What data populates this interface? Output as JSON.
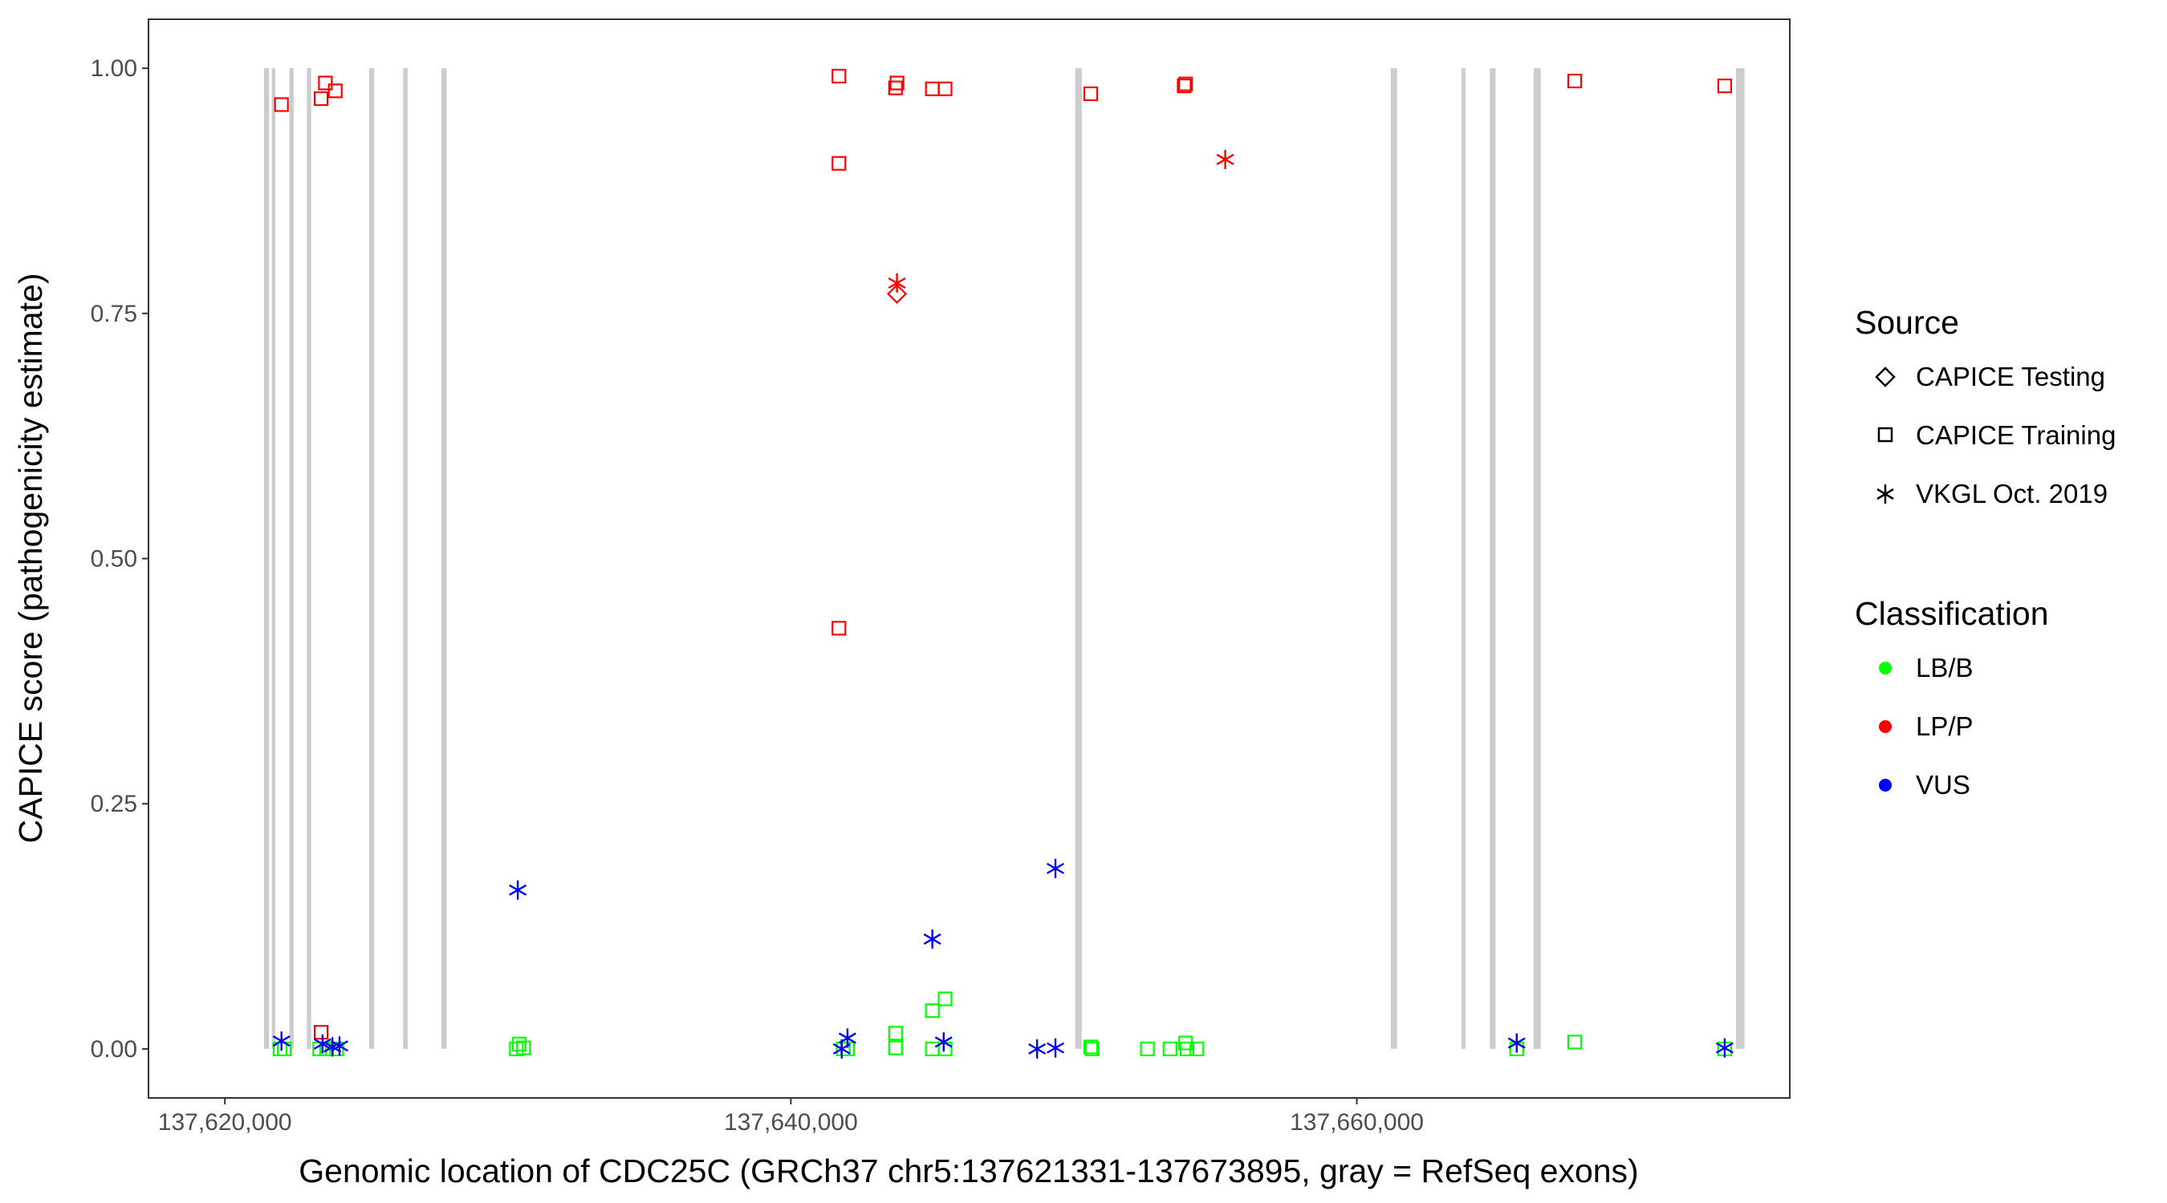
{
  "chart_data": {
    "type": "scatter",
    "xlabel": "Genomic location of CDC25C (GRCh37 chr5:137621331-137673895, gray = RefSeq exons)",
    "ylabel": "CAPICE score (pathogenicity estimate)",
    "xlim": [
      137617300,
      137675300
    ],
    "ylim": [
      -0.05,
      1.05
    ],
    "x_ticks": [
      137620000,
      137640000,
      137660000
    ],
    "x_tick_labels": [
      "137,620,000",
      "137,640,000",
      "137,660,000"
    ],
    "y_ticks": [
      0,
      0.25,
      0.5,
      0.75,
      1.0
    ],
    "y_tick_labels": [
      "0.00",
      "0.25",
      "0.50",
      "0.75",
      "1.00"
    ],
    "grid": false,
    "legend_placement": "right",
    "exon_color": "#cccccc",
    "exons": [
      [
        137621380,
        137621560
      ],
      [
        137621660,
        137621780
      ],
      [
        137622280,
        137622430
      ],
      [
        137622900,
        137623050
      ],
      [
        137625100,
        137625280
      ],
      [
        137626300,
        137626460
      ],
      [
        137627650,
        137627840
      ],
      [
        137650050,
        137650280
      ],
      [
        137661200,
        137661420
      ],
      [
        137663700,
        137663840
      ],
      [
        137664700,
        137664900
      ],
      [
        137666250,
        137666500
      ],
      [
        137673400,
        137673700
      ]
    ],
    "legend": {
      "source_title": "Source",
      "classification_title": "Classification",
      "sources": [
        {
          "label": "CAPICE Testing",
          "shape": "diamond"
        },
        {
          "label": "CAPICE Training",
          "shape": "square"
        },
        {
          "label": "VKGL Oct. 2019",
          "shape": "asterisk"
        }
      ],
      "classes": [
        {
          "label": "LB/B",
          "color": "#00ff00"
        },
        {
          "label": "LP/P",
          "color": "#ff0000"
        },
        {
          "label": "VUS",
          "color": "#0000ff"
        }
      ]
    },
    "points": [
      {
        "x": 137622000,
        "y": 0.963,
        "source": "square",
        "class": "LP/P"
      },
      {
        "x": 137623400,
        "y": 0.969,
        "source": "square",
        "class": "LP/P"
      },
      {
        "x": 137623550,
        "y": 0.985,
        "source": "square",
        "class": "LP/P"
      },
      {
        "x": 137623900,
        "y": 0.977,
        "source": "square",
        "class": "LP/P"
      },
      {
        "x": 137641700,
        "y": 0.992,
        "source": "square",
        "class": "LP/P"
      },
      {
        "x": 137643700,
        "y": 0.98,
        "source": "square",
        "class": "LP/P"
      },
      {
        "x": 137643750,
        "y": 0.985,
        "source": "square",
        "class": "LP/P"
      },
      {
        "x": 137645000,
        "y": 0.979,
        "source": "square",
        "class": "LP/P"
      },
      {
        "x": 137645450,
        "y": 0.979,
        "source": "square",
        "class": "LP/P"
      },
      {
        "x": 137641700,
        "y": 0.903,
        "source": "square",
        "class": "LP/P"
      },
      {
        "x": 137641700,
        "y": 0.429,
        "source": "square",
        "class": "LP/P"
      },
      {
        "x": 137650600,
        "y": 0.974,
        "source": "square",
        "class": "LP/P"
      },
      {
        "x": 137653900,
        "y": 0.982,
        "source": "square",
        "class": "LP/P"
      },
      {
        "x": 137653950,
        "y": 0.984,
        "source": "square",
        "class": "LP/P"
      },
      {
        "x": 137667700,
        "y": 0.987,
        "source": "square",
        "class": "LP/P"
      },
      {
        "x": 137673000,
        "y": 0.982,
        "source": "square",
        "class": "LP/P"
      },
      {
        "x": 137623400,
        "y": 0.017,
        "source": "square",
        "class": "LP/P"
      },
      {
        "x": 137643750,
        "y": 0.77,
        "source": "diamond",
        "class": "LP/P"
      },
      {
        "x": 137643750,
        "y": 0.781,
        "source": "asterisk",
        "class": "LP/P"
      },
      {
        "x": 137655350,
        "y": 0.907,
        "source": "asterisk",
        "class": "LP/P"
      },
      {
        "x": 137621950,
        "y": 0.0,
        "source": "square",
        "class": "LB/B"
      },
      {
        "x": 137622100,
        "y": 0.0,
        "source": "square",
        "class": "LB/B"
      },
      {
        "x": 137623350,
        "y": 0.0,
        "source": "square",
        "class": "LB/B"
      },
      {
        "x": 137623600,
        "y": 0.0,
        "source": "square",
        "class": "LB/B"
      },
      {
        "x": 137623950,
        "y": 0.0,
        "source": "square",
        "class": "LB/B"
      },
      {
        "x": 137630300,
        "y": 0.0,
        "source": "square",
        "class": "LB/B"
      },
      {
        "x": 137630400,
        "y": 0.005,
        "source": "square",
        "class": "LB/B"
      },
      {
        "x": 137630550,
        "y": 0.001,
        "source": "square",
        "class": "LB/B"
      },
      {
        "x": 137641850,
        "y": 0.0,
        "source": "square",
        "class": "LB/B"
      },
      {
        "x": 137642000,
        "y": 0.0,
        "source": "square",
        "class": "LB/B"
      },
      {
        "x": 137643700,
        "y": 0.016,
        "source": "square",
        "class": "LB/B"
      },
      {
        "x": 137643700,
        "y": 0.001,
        "source": "square",
        "class": "LB/B"
      },
      {
        "x": 137645000,
        "y": 0.039,
        "source": "square",
        "class": "LB/B"
      },
      {
        "x": 137645450,
        "y": 0.051,
        "source": "square",
        "class": "LB/B"
      },
      {
        "x": 137645000,
        "y": 0.0,
        "source": "square",
        "class": "LB/B"
      },
      {
        "x": 137645450,
        "y": 0.0,
        "source": "square",
        "class": "LB/B"
      },
      {
        "x": 137650600,
        "y": 0.002,
        "source": "square",
        "class": "LB/B"
      },
      {
        "x": 137650650,
        "y": 0.0,
        "source": "square",
        "class": "LB/B"
      },
      {
        "x": 137652600,
        "y": 0.0,
        "source": "square",
        "class": "LB/B"
      },
      {
        "x": 137653400,
        "y": 0.0,
        "source": "square",
        "class": "LB/B"
      },
      {
        "x": 137653950,
        "y": 0.006,
        "source": "square",
        "class": "LB/B"
      },
      {
        "x": 137654000,
        "y": 0.0,
        "source": "square",
        "class": "LB/B"
      },
      {
        "x": 137654350,
        "y": 0.0,
        "source": "square",
        "class": "LB/B"
      },
      {
        "x": 137665650,
        "y": 0.0,
        "source": "square",
        "class": "LB/B"
      },
      {
        "x": 137667700,
        "y": 0.007,
        "source": "square",
        "class": "LB/B"
      },
      {
        "x": 137673000,
        "y": 0.0,
        "source": "square",
        "class": "LB/B"
      },
      {
        "x": 137622000,
        "y": 0.008,
        "source": "asterisk",
        "class": "VUS"
      },
      {
        "x": 137623450,
        "y": 0.005,
        "source": "asterisk",
        "class": "VUS"
      },
      {
        "x": 137623800,
        "y": 0.002,
        "source": "asterisk",
        "class": "VUS"
      },
      {
        "x": 137624050,
        "y": 0.003,
        "source": "asterisk",
        "class": "VUS"
      },
      {
        "x": 137630350,
        "y": 0.162,
        "source": "asterisk",
        "class": "VUS"
      },
      {
        "x": 137641800,
        "y": 0.0,
        "source": "asterisk",
        "class": "VUS"
      },
      {
        "x": 137642000,
        "y": 0.011,
        "source": "asterisk",
        "class": "VUS"
      },
      {
        "x": 137645000,
        "y": 0.112,
        "source": "asterisk",
        "class": "VUS"
      },
      {
        "x": 137645400,
        "y": 0.007,
        "source": "asterisk",
        "class": "VUS"
      },
      {
        "x": 137649350,
        "y": 0.184,
        "source": "asterisk",
        "class": "VUS"
      },
      {
        "x": 137649350,
        "y": 0.001,
        "source": "asterisk",
        "class": "VUS"
      },
      {
        "x": 137648700,
        "y": 0.0,
        "source": "asterisk",
        "class": "VUS"
      },
      {
        "x": 137665650,
        "y": 0.006,
        "source": "asterisk",
        "class": "VUS"
      },
      {
        "x": 137673000,
        "y": 0.001,
        "source": "asterisk",
        "class": "VUS"
      }
    ]
  }
}
